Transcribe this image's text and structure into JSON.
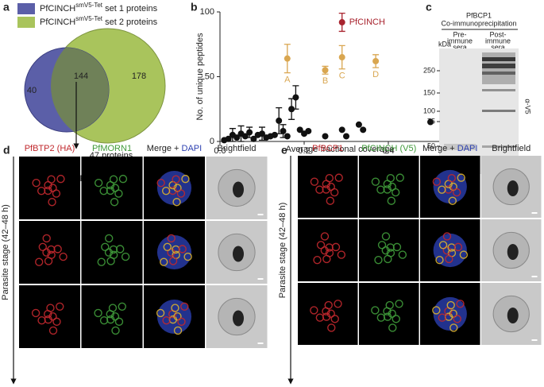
{
  "panel_a": {
    "letter": "a",
    "legend": [
      {
        "base": "PfCINCH",
        "sup": "smV5-Tet",
        "rest": " set 1 proteins",
        "color": "#5b5fa8"
      },
      {
        "base": "PfCINCH",
        "sup": "smV5-Tet",
        "rest": " set 2 proteins",
        "color": "#a9c45c"
      }
    ],
    "venn": {
      "only_set1": "40",
      "overlap": "144",
      "only_set2": "178"
    },
    "note": {
      "line1": "47 proteins",
      "line2": "enriched in",
      "base": "PfCINCH",
      "sup": "smV5-Tet"
    }
  },
  "panel_b_letter": "b",
  "chart_data": {
    "type": "scatter",
    "x_label": "Average fractional coverage",
    "y_label": "No. of unique peptides",
    "xlim": [
      0,
      0.6
    ],
    "ylim": [
      0,
      100
    ],
    "xticks": [
      {
        "value": 0,
        "label": "0.0"
      },
      0.2,
      0.4,
      0.6
    ],
    "yticks": [
      0,
      50,
      100
    ],
    "series": [
      {
        "color": "#111111",
        "x": [
          0.01,
          0.02,
          0.03,
          0.04,
          0.05,
          0.06,
          0.07,
          0.08,
          0.09,
          0.1,
          0.11,
          0.12,
          0.13,
          0.14,
          0.15,
          0.16,
          0.17,
          0.18,
          0.19,
          0.2,
          0.21,
          0.25,
          0.29,
          0.3,
          0.33,
          0.34,
          0.5
        ],
        "values": [
          1,
          2,
          5,
          3,
          6,
          4,
          7,
          2,
          5,
          6,
          3,
          4,
          5,
          16,
          8,
          4,
          25,
          34,
          9,
          6,
          8,
          4,
          9,
          4,
          13,
          9,
          15
        ],
        "errors": [
          null,
          null,
          5,
          null,
          6,
          null,
          4,
          null,
          null,
          5,
          null,
          null,
          null,
          10,
          5,
          null,
          8,
          9,
          null,
          null,
          null,
          null,
          null,
          null,
          null,
          null,
          null
        ]
      },
      {
        "color": "#d9a650",
        "x": [
          0.16,
          0.25,
          0.29,
          0.37
        ],
        "values": [
          64,
          55,
          65,
          62
        ],
        "errors": [
          11,
          3,
          9,
          5
        ],
        "labels": [
          "A",
          "B",
          "C",
          "D"
        ]
      },
      {
        "name": "PfCINCH",
        "color": "#a8232e",
        "x": [
          0.29
        ],
        "values": [
          92
        ],
        "errors": [
          7
        ]
      }
    ]
  },
  "panel_c": {
    "letter": "c",
    "title1": "PfBCP1",
    "title2": "Co-immunoprecipitation",
    "lanes": [
      [
        "Pre-",
        "immune",
        "sera"
      ],
      [
        "Post-",
        "immune",
        "sera"
      ]
    ],
    "unit": "kDa",
    "markers": [
      "250",
      "150",
      "100",
      "75",
      "50"
    ],
    "antibody": "α-V5"
  },
  "panel_d": {
    "letter": "d",
    "headers": [
      {
        "text": "PfBTP2 (HA)",
        "color": "#c0282d"
      },
      {
        "text": "PfMORN1",
        "color": "#3f9a3a"
      },
      {
        "text": "Merge + ",
        "text2": "DAPI",
        "color": "#222222",
        "color2": "#2b3fb0"
      },
      {
        "text": "Brightfield",
        "color": "#222222"
      }
    ],
    "side_label": "Parasite stage (42–48 h)"
  },
  "panel_e": {
    "letter": "e",
    "headers": [
      {
        "text": "PfBCP1",
        "color": "#c0282d"
      },
      {
        "text": "PfCINCH (V5)",
        "color": "#3f9a3a"
      },
      {
        "text": "Merge + ",
        "text2": "DAPI",
        "color": "#222222",
        "color2": "#2b3fb0"
      },
      {
        "text": "Brightfield",
        "color": "#222222"
      }
    ],
    "side_label": "Parasite stage (42–48 h)"
  }
}
